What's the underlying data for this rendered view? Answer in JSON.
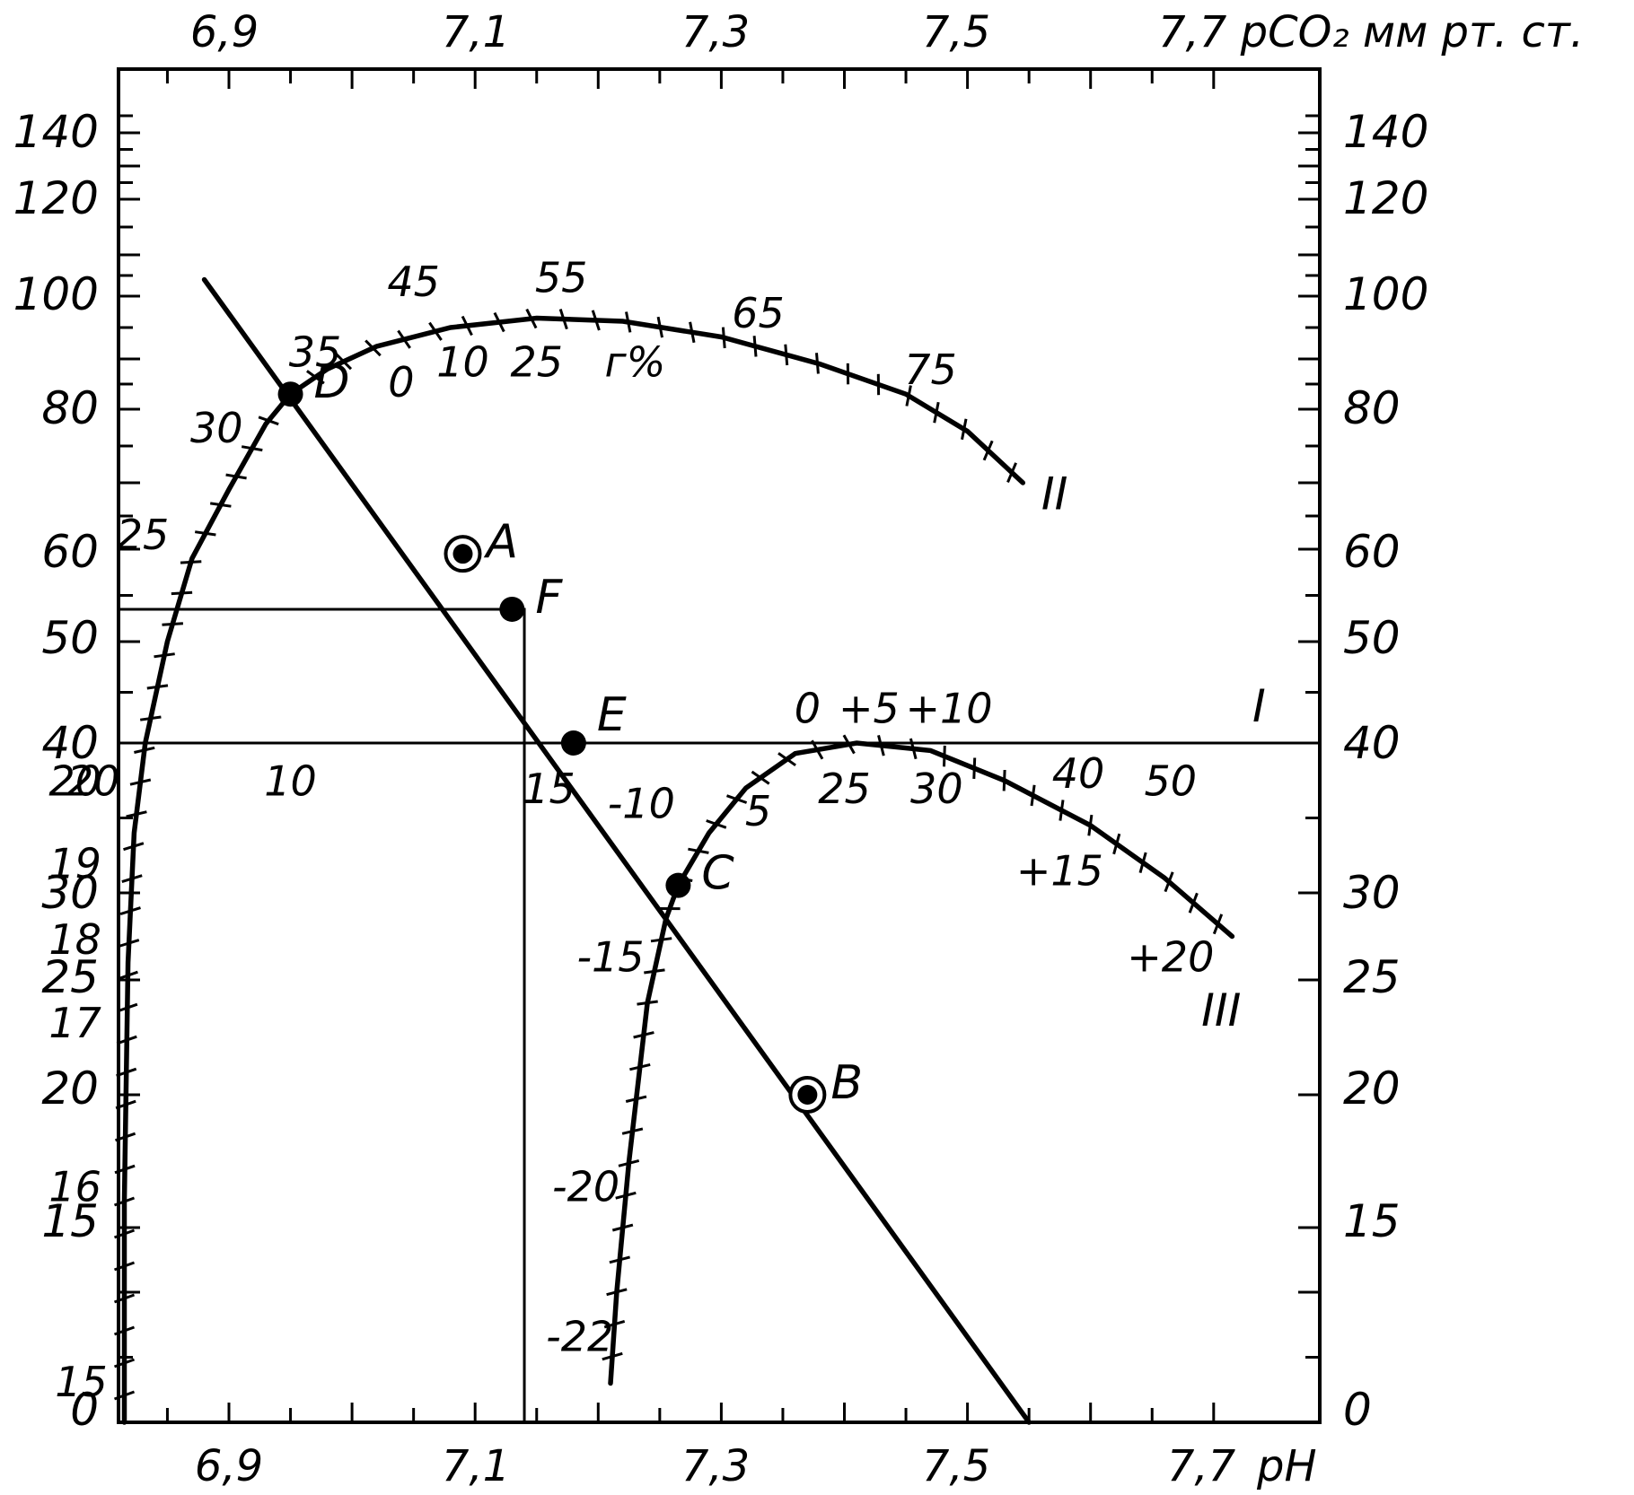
{
  "chart_data": {
    "type": "line",
    "axes": {
      "ph_tick_labels": [
        "6,9",
        "7,1",
        "7,3",
        "7,5",
        "7,7"
      ],
      "ph_axis_label": "pH",
      "top_last_label": "7,7 pCO₂ мм рт. ст.",
      "pco2_tick_labels": [
        "140",
        "120",
        "100",
        "80",
        "60",
        "50",
        "40",
        "30",
        "25",
        "20",
        "15",
        "0"
      ],
      "ph_range": [
        6.72,
        7.72
      ]
    },
    "reference_lines": [
      {
        "label": "I",
        "pco2_level": 40
      },
      {
        "label": "",
        "pco2_level": 53.5,
        "ph_at_end": 7.14
      }
    ],
    "buffer_line": {
      "points": [
        {
          "ph": 6.88,
          "pco2": 104
        },
        {
          "ph": 7.55,
          "pco2": 0
        }
      ],
      "named_points": [
        {
          "name": "D",
          "ph": 6.95,
          "pco2": 83,
          "ring": false
        },
        {
          "name": "A",
          "ph": 7.09,
          "pco2": 59.5,
          "ring": true
        },
        {
          "name": "F",
          "ph": 7.13,
          "pco2": 53.5,
          "ring": false
        },
        {
          "name": "E",
          "ph": 7.18,
          "pco2": 40,
          "ring": false
        },
        {
          "name": "C",
          "ph": 7.265,
          "pco2": 30.5,
          "ring": false
        },
        {
          "name": "B",
          "ph": 7.37,
          "pco2": 20,
          "ring": true
        }
      ]
    },
    "curves": [
      {
        "name": "II",
        "path": [
          [
            6.815,
            0
          ],
          [
            6.815,
            16
          ],
          [
            6.818,
            26
          ],
          [
            6.823,
            34
          ],
          [
            6.832,
            40
          ],
          [
            6.85,
            50
          ],
          [
            6.87,
            59
          ],
          [
            6.9,
            69
          ],
          [
            6.93,
            78
          ],
          [
            6.95,
            83
          ],
          [
            6.98,
            88
          ],
          [
            7.02,
            92
          ],
          [
            7.08,
            95
          ],
          [
            7.15,
            96.5
          ],
          [
            7.22,
            96
          ],
          [
            7.3,
            93.5
          ],
          [
            7.38,
            89
          ],
          [
            7.45,
            83
          ],
          [
            7.5,
            77
          ],
          [
            7.545,
            70
          ]
        ],
        "labels": [
          {
            "text": "15",
            "ph": 6.78,
            "pco2": 2
          },
          {
            "text": "16",
            "ph": 6.775,
            "pco2": 16
          },
          {
            "text": "17",
            "ph": 6.775,
            "pco2": 22.5
          },
          {
            "text": "18",
            "ph": 6.775,
            "pco2": 26.5
          },
          {
            "text": "19",
            "ph": 6.775,
            "pco2": 31
          },
          {
            "text": "20",
            "ph": 6.79,
            "pco2": 36.5
          },
          {
            "text": "25",
            "ph": 6.83,
            "pco2": 60
          },
          {
            "text": "30",
            "ph": 6.89,
            "pco2": 75.5
          },
          {
            "text": "35",
            "ph": 6.97,
            "pco2": 88.5
          },
          {
            "text": "45",
            "ph": 7.05,
            "pco2": 100
          },
          {
            "text": "55",
            "ph": 7.17,
            "pco2": 101
          },
          {
            "text": "65",
            "ph": 7.33,
            "pco2": 95
          },
          {
            "text": "75",
            "ph": 7.47,
            "pco2": 85
          },
          {
            "text": "0",
            "ph": 7.04,
            "pco2": 82.5
          },
          {
            "text": "10",
            "ph": 7.09,
            "pco2": 86.5
          },
          {
            "text": "25",
            "ph": 7.15,
            "pco2": 86.5
          },
          {
            "text": "г%",
            "ph": 7.23,
            "pco2": 86.5
          }
        ]
      },
      {
        "name": "III",
        "path": [
          [
            7.21,
            3
          ],
          [
            7.215,
            10
          ],
          [
            7.225,
            17.5
          ],
          [
            7.24,
            24
          ],
          [
            7.255,
            28.5
          ],
          [
            7.265,
            30.5
          ],
          [
            7.29,
            34
          ],
          [
            7.32,
            37
          ],
          [
            7.36,
            39.3
          ],
          [
            7.41,
            40
          ],
          [
            7.47,
            39.5
          ],
          [
            7.53,
            37.5
          ],
          [
            7.6,
            34.5
          ],
          [
            7.66,
            31
          ],
          [
            7.715,
            27.5
          ]
        ],
        "labels": [
          {
            "text": "-22",
            "ph": 7.185,
            "pco2": 5.5
          },
          {
            "text": "-20",
            "ph": 7.19,
            "pco2": 16
          },
          {
            "text": "-15",
            "ph": 7.21,
            "pco2": 25.5
          },
          {
            "text": "-10",
            "ph": 7.235,
            "pco2": 35
          },
          {
            "text": "5",
            "ph": 7.33,
            "pco2": 34.5
          },
          {
            "text": "0",
            "ph": 7.37,
            "pco2": 42
          },
          {
            "text": "+5",
            "ph": 7.42,
            "pco2": 42
          },
          {
            "text": "+10",
            "ph": 7.485,
            "pco2": 42
          },
          {
            "text": "25",
            "ph": 7.4,
            "pco2": 36
          },
          {
            "text": "30",
            "ph": 7.475,
            "pco2": 36
          },
          {
            "text": "40",
            "ph": 7.59,
            "pco2": 37
          },
          {
            "text": "50",
            "ph": 7.665,
            "pco2": 36.5
          },
          {
            "text": "+15",
            "ph": 7.575,
            "pco2": 30.5
          },
          {
            "text": "+20",
            "ph": 7.665,
            "pco2": 25.5
          }
        ]
      }
    ],
    "line_I_labels": [
      {
        "text": "20",
        "ph": 6.775,
        "pco2": 36.5
      },
      {
        "text": "10",
        "ph": 6.95,
        "pco2": 36.5
      },
      {
        "text": "15",
        "ph": 7.16,
        "pco2": 36
      }
    ]
  }
}
